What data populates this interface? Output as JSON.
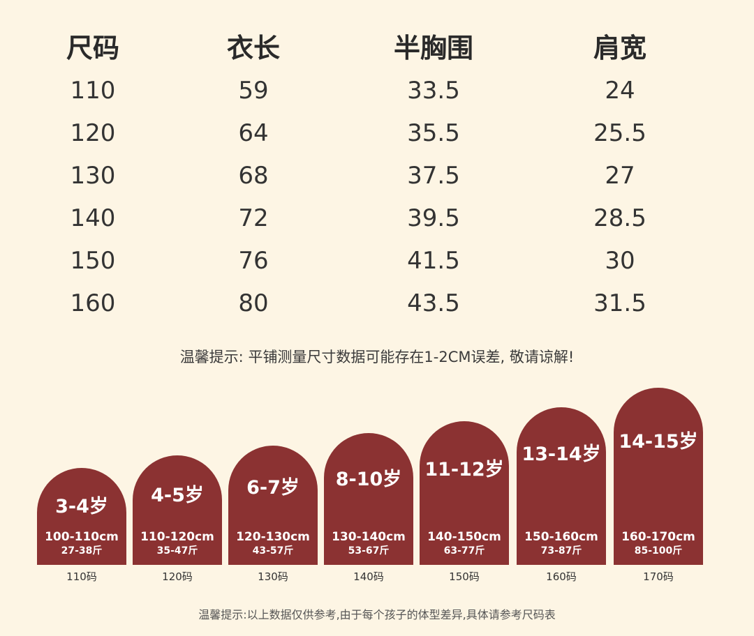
{
  "table": {
    "headers": [
      "尺码",
      "衣长",
      "半胸围",
      "肩宽"
    ],
    "rows": [
      [
        "110",
        "59",
        "33.5",
        "24"
      ],
      [
        "120",
        "64",
        "35.5",
        "25.5"
      ],
      [
        "130",
        "68",
        "37.5",
        "27"
      ],
      [
        "140",
        "72",
        "39.5",
        "28.5"
      ],
      [
        "150",
        "76",
        "41.5",
        "30"
      ],
      [
        "160",
        "80",
        "43.5",
        "31.5"
      ]
    ]
  },
  "note_top": "温馨提示: 平铺测量尺寸数据可能存在1-2CM误差, 敬请谅解!",
  "size_cards": [
    {
      "age": "3-4岁",
      "height": "100-110cm",
      "weight": "27-38斤",
      "size": "110码"
    },
    {
      "age": "4-5岁",
      "height": "110-120cm",
      "weight": "35-47斤",
      "size": "120码"
    },
    {
      "age": "6-7岁",
      "height": "120-130cm",
      "weight": "43-57斤",
      "size": "130码"
    },
    {
      "age": "8-10岁",
      "height": "130-140cm",
      "weight": "53-67斤",
      "size": "140码"
    },
    {
      "age": "11-12岁",
      "height": "140-150cm",
      "weight": "63-77斤",
      "size": "150码"
    },
    {
      "age": "13-14岁",
      "height": "150-160cm",
      "weight": "73-87斤",
      "size": "160码"
    },
    {
      "age": "14-15岁",
      "height": "160-170cm",
      "weight": "85-100斤",
      "size": "170码"
    }
  ],
  "note_bottom": "温馨提示:以上数据仅供参考,由于每个孩子的体型差异,具体请参考尺码表",
  "colors": {
    "background": "#fdf5e4",
    "card": "#8b3232"
  }
}
